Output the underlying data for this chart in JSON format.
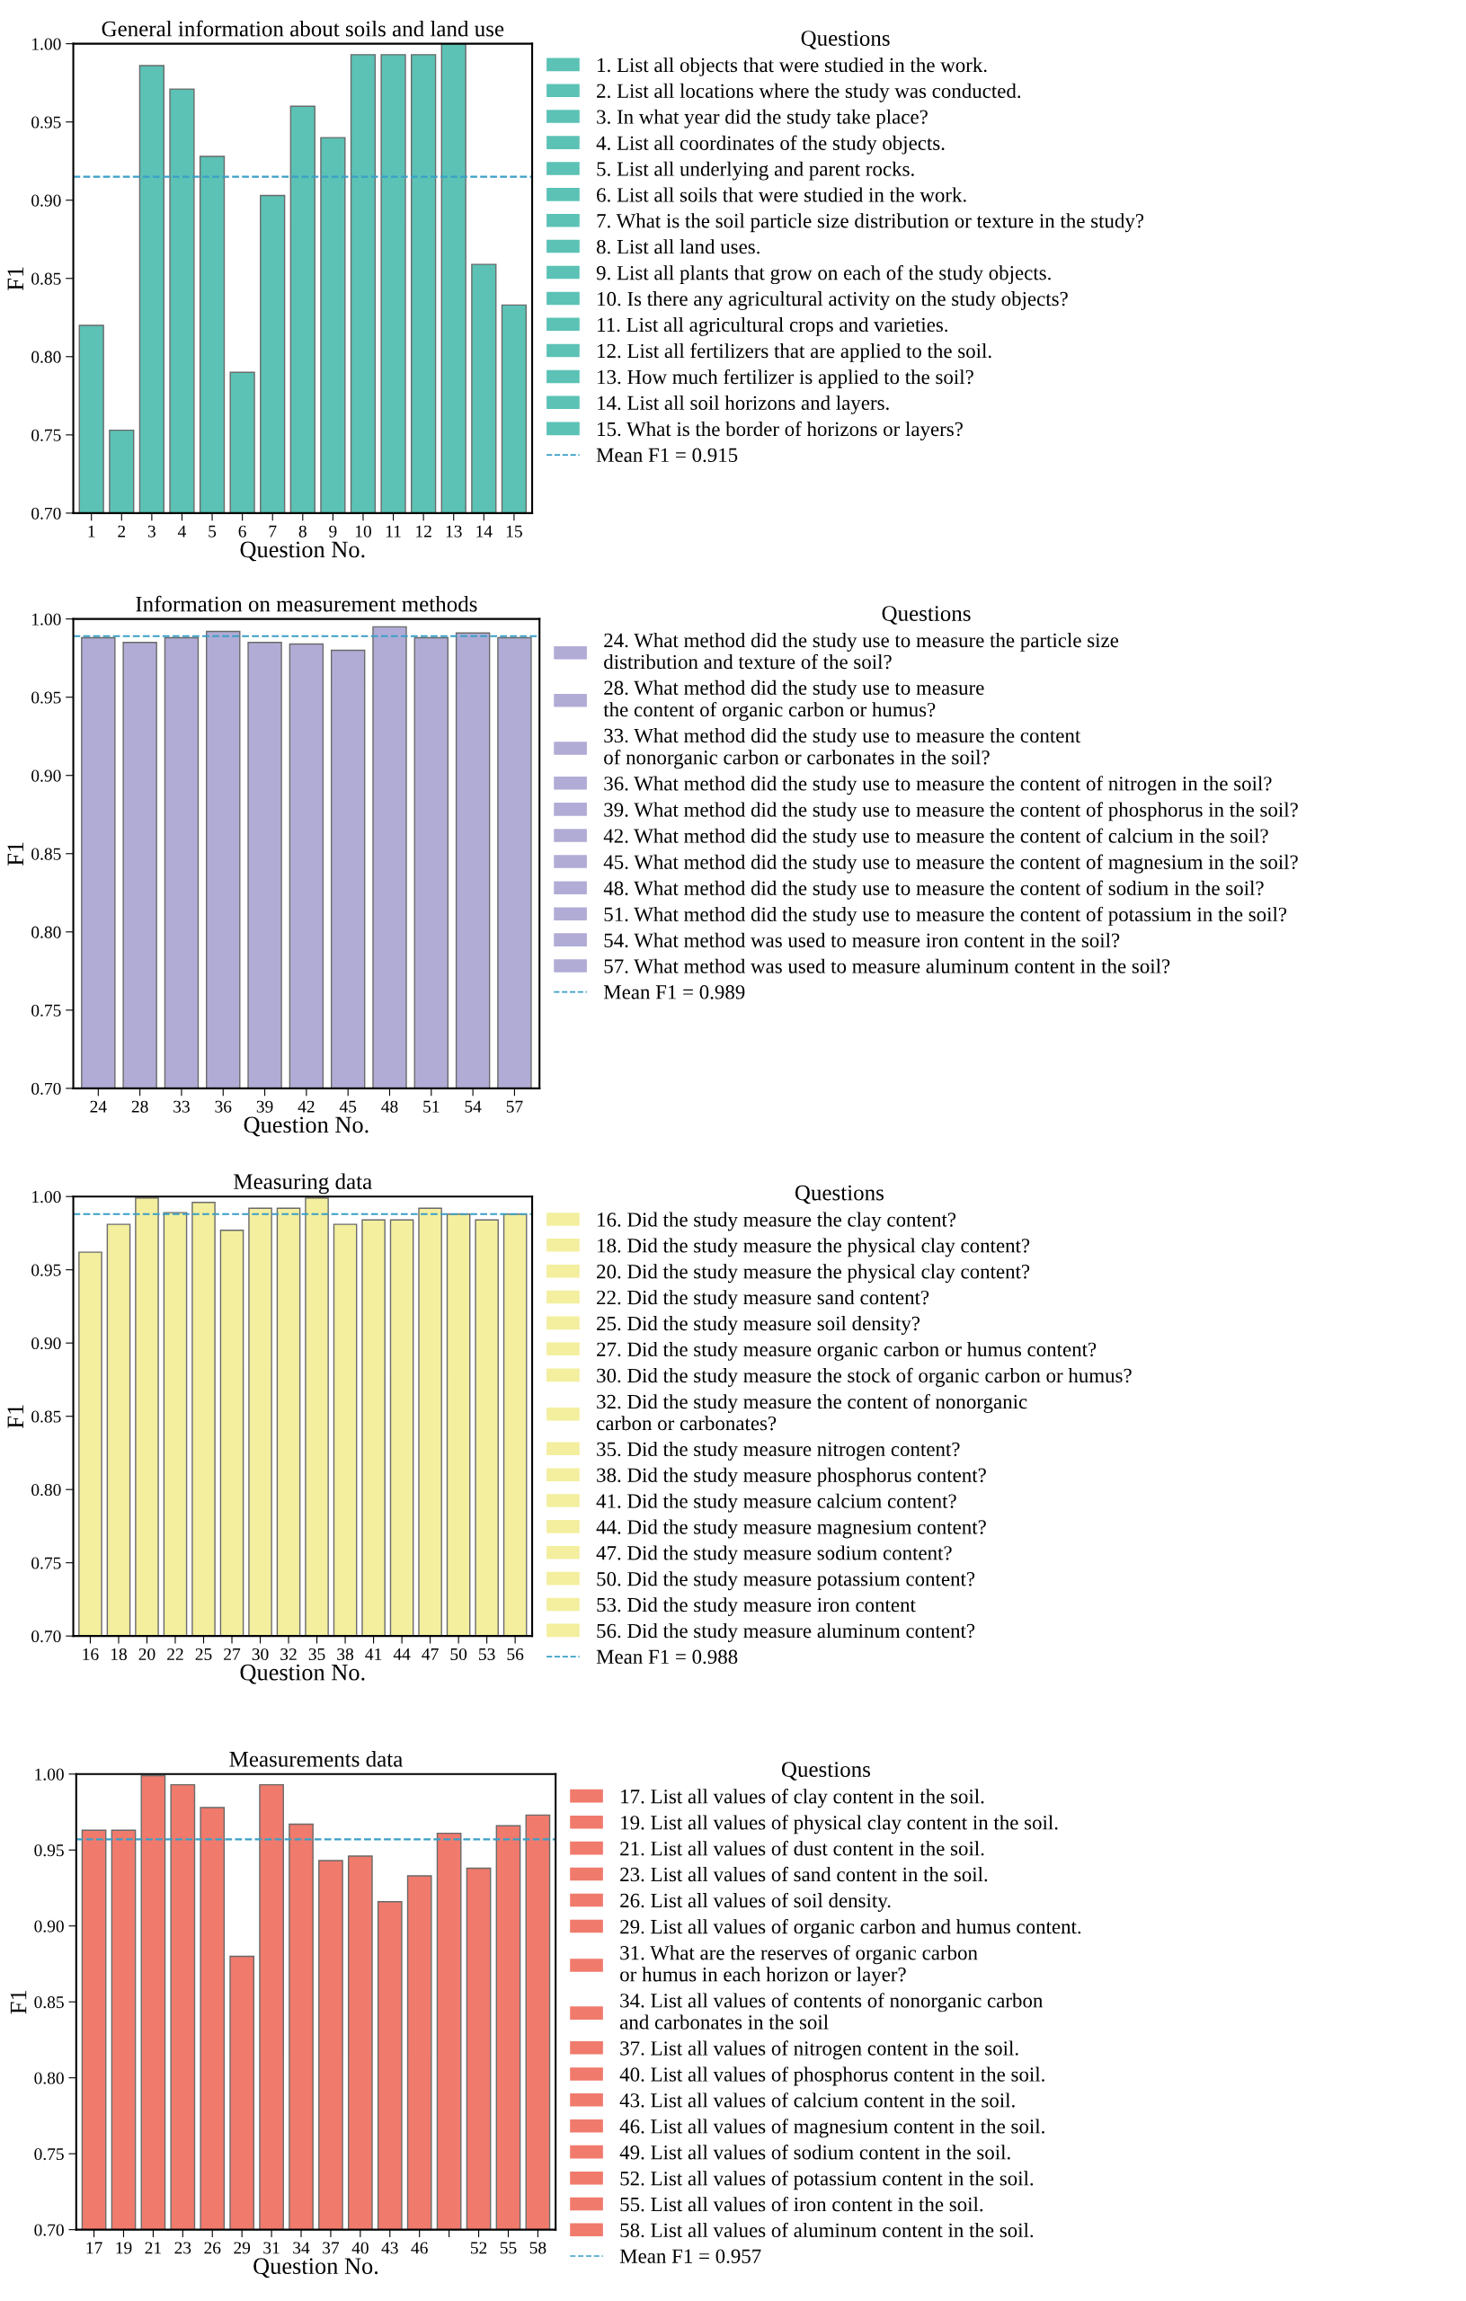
{
  "chart_data": [
    {
      "type": "bar",
      "title": "General information about soils and land use",
      "xlabel": "Question No.",
      "ylabel": "F1",
      "legend_title": "Questions",
      "legend": "right",
      "categories": [
        "1",
        "2",
        "3",
        "4",
        "5",
        "6",
        "7",
        "8",
        "9",
        "10",
        "11",
        "12",
        "13",
        "14",
        "15"
      ],
      "ylim": [
        0.7,
        1.0
      ],
      "yticks": [
        {
          "value": 0.7,
          "label": "0.70"
        },
        {
          "value": 0.75,
          "label": "0.75"
        },
        {
          "value": 0.8,
          "label": "0.80"
        },
        {
          "value": 0.85,
          "label": "0.85"
        },
        {
          "value": 0.9,
          "label": "0.90"
        },
        {
          "value": 0.95,
          "label": "0.95"
        },
        {
          "value": 1.0,
          "label": "1.00"
        }
      ],
      "ref_lines": [
        {
          "axis": "y",
          "value": 0.915,
          "label": "Mean F1 = 0.915",
          "color": "#3a9fc7",
          "line_style": "dashed"
        }
      ],
      "series": [
        {
          "color": "#5bc2b5",
          "values": [
            0.82,
            0.753,
            0.986,
            0.971,
            0.928,
            0.79,
            0.903,
            0.96,
            0.94,
            0.993,
            0.993,
            0.993,
            1.0,
            0.859,
            0.833
          ]
        }
      ],
      "annotations": [
        "1. List all objects that were studied in the work.",
        "2. List all locations where the study was conducted.",
        "3. In what year did the study take place?",
        "4. List all coordinates of the study objects.",
        "5. List all underlying and parent rocks.",
        "6. List all soils that were studied in the work.",
        "7. What is the soil particle size distribution or texture in the study?",
        "8. List all land uses.",
        "9. List all plants that grow on each of the study objects.",
        "10. Is there any agricultural activity on the study objects?",
        "11. List all agricultural crops and varieties.",
        "12. List all fertilizers that are applied to the soil.",
        "13. How much fertilizer is applied to the soil?",
        "14. List all soil horizons and layers.",
        "15. What is the border of horizons or layers?"
      ]
    },
    {
      "type": "bar",
      "title": "Information on measurement methods",
      "xlabel": "Question No.",
      "ylabel": "F1",
      "legend_title": "Questions",
      "legend": "right",
      "categories": [
        "24",
        "28",
        "33",
        "36",
        "39",
        "42",
        "45",
        "48",
        "51",
        "54",
        "57"
      ],
      "ylim": [
        0.7,
        1.0
      ],
      "yticks": [
        {
          "value": 0.7,
          "label": "0.70"
        },
        {
          "value": 0.75,
          "label": "0.75"
        },
        {
          "value": 0.8,
          "label": "0.80"
        },
        {
          "value": 0.85,
          "label": "0.85"
        },
        {
          "value": 0.9,
          "label": "0.90"
        },
        {
          "value": 0.95,
          "label": "0.95"
        },
        {
          "value": 1.0,
          "label": "1.00"
        }
      ],
      "ref_lines": [
        {
          "axis": "y",
          "value": 0.989,
          "label": "Mean F1 = 0.989",
          "color": "#3a9fc7",
          "line_style": "dashed"
        }
      ],
      "series": [
        {
          "color": "#b0acd6",
          "values": [
            0.988,
            0.985,
            0.988,
            0.992,
            0.985,
            0.984,
            0.98,
            0.995,
            0.988,
            0.991,
            0.988
          ]
        }
      ],
      "annotations": [
        "24. What method did the study use to measure the particle size\ndistribution and texture of the soil?",
        "28. What method did the study use to measure\nthe content of organic carbon or humus?",
        "33. What method did the study use to measure the content\nof nonorganic carbon or carbonates in the soil?",
        "36. What method did the study use to measure the content of nitrogen in the soil?",
        "39. What method did the study use to measure the content of phosphorus in the soil?",
        "42. What method did the study use to measure the content of calcium in the soil?",
        "45. What method did the study use to measure the content of magnesium in the soil?",
        "48. What method did the study use to measure the content of sodium in the soil?",
        "51. What method did the study use to measure the content of potassium in the soil?",
        "54. What method was used to measure iron content in the soil?",
        "57. What method was used to measure aluminum content in the soil?"
      ]
    },
    {
      "type": "bar",
      "title": "Measuring data",
      "xlabel": "Question No.",
      "ylabel": "F1",
      "legend_title": "Questions",
      "legend": "right",
      "categories": [
        "16",
        "18",
        "20",
        "22",
        "25",
        "27",
        "30",
        "32",
        "35",
        "38",
        "41",
        "44",
        "47",
        "50",
        "53",
        "56"
      ],
      "ylim": [
        0.7,
        1.0
      ],
      "yticks": [
        {
          "value": 0.7,
          "label": "0.70"
        },
        {
          "value": 0.75,
          "label": "0.75"
        },
        {
          "value": 0.8,
          "label": "0.80"
        },
        {
          "value": 0.85,
          "label": "0.85"
        },
        {
          "value": 0.9,
          "label": "0.90"
        },
        {
          "value": 0.95,
          "label": "0.95"
        },
        {
          "value": 1.0,
          "label": "1.00"
        }
      ],
      "ref_lines": [
        {
          "axis": "y",
          "value": 0.988,
          "label": "Mean F1 = 0.988",
          "color": "#3a9fc7",
          "line_style": "dashed"
        }
      ],
      "series": [
        {
          "color": "#f3ef9e",
          "values": [
            0.962,
            0.981,
            0.999,
            0.989,
            0.996,
            0.977,
            0.992,
            0.992,
            0.999,
            0.981,
            0.984,
            0.984,
            0.992,
            0.988,
            0.984,
            0.988
          ]
        }
      ],
      "annotations": [
        "16. Did the study measure the clay content?",
        "18. Did the study measure the physical clay content?",
        "20. Did the study measure the physical clay content?",
        "22. Did the study measure sand content?",
        "25. Did the study measure soil density?",
        "27. Did the study measure organic carbon or humus content?",
        "30. Did the study measure the stock of organic carbon or humus?",
        "32. Did the study measure the content of nonorganic\ncarbon or carbonates?",
        "35. Did the study measure nitrogen content?",
        "38. Did the study measure phosphorus content?",
        "41. Did the study measure calcium content?",
        "44. Did the study measure magnesium content?",
        "47. Did the study measure sodium content?",
        "50. Did the study measure potassium content?",
        "53. Did the study measure iron content",
        "56. Did the study measure aluminum content?"
      ]
    },
    {
      "type": "bar",
      "title": "Measurements data",
      "xlabel": "Question No.",
      "ylabel": "F1",
      "legend_title": "Questions",
      "legend": "right",
      "categories": [
        "17",
        "19",
        "21",
        "23",
        "26",
        "29",
        "31",
        "34",
        "37",
        "40",
        "43",
        "46",
        null,
        "52",
        "55",
        "58"
      ],
      "ylim": [
        0.7,
        1.0
      ],
      "yticks": [
        {
          "value": 0.7,
          "label": "0.70"
        },
        {
          "value": 0.75,
          "label": "0.75"
        },
        {
          "value": 0.8,
          "label": "0.80"
        },
        {
          "value": 0.85,
          "label": "0.85"
        },
        {
          "value": 0.9,
          "label": "0.90"
        },
        {
          "value": 0.95,
          "label": "0.95"
        },
        {
          "value": 1.0,
          "label": "1.00"
        }
      ],
      "ref_lines": [
        {
          "axis": "y",
          "value": 0.957,
          "label": "Mean F1 = 0.957",
          "color": "#3a9fc7",
          "line_style": "dashed"
        }
      ],
      "series": [
        {
          "color": "#f07a6c",
          "values": [
            0.963,
            0.963,
            0.999,
            0.993,
            0.978,
            0.88,
            0.993,
            0.967,
            0.943,
            0.946,
            0.916,
            0.933,
            0.961,
            0.938,
            0.966,
            0.973
          ]
        }
      ],
      "annotations": [
        "17. List all values of clay content in the soil.",
        "19. List all values of physical clay content in the soil.",
        "21. List all values of dust content in the soil.",
        "23. List all values of sand content in the soil.",
        "26. List all values of soil density.",
        "29. List all values of organic carbon and humus content.",
        "31. What are the reserves of organic carbon\nor humus in each horizon or layer?",
        "34. List all values of contents of nonorganic carbon\nand carbonates in the soil",
        "37. List all values of nitrogen content in the soil.",
        "40. List all values of phosphorus content in the soil.",
        "43. List all values of calcium content in the soil.",
        "46. List all values of magnesium content in the soil.",
        "49. List all values of sodium content in the soil.",
        "52. List all values of potassium content in the soil.",
        "55. List all values of iron content in the soil.",
        "58. List all values of aluminum content in the soil."
      ]
    }
  ]
}
